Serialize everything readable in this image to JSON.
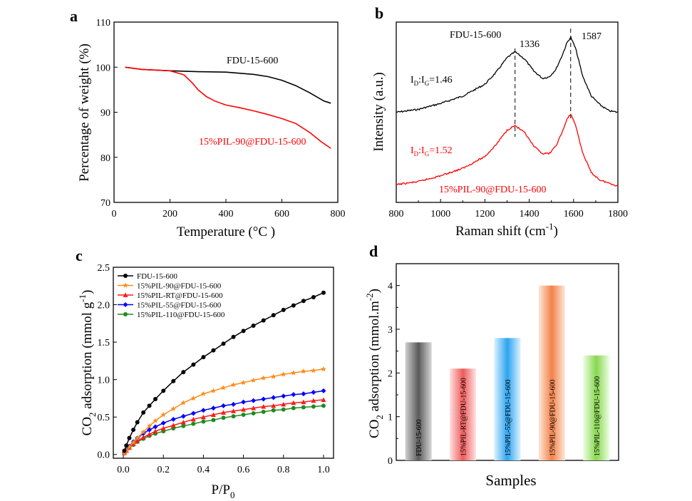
{
  "panels": {
    "a": {
      "letter": "a",
      "xlabel": "Temperature (°C )",
      "ylabel": "Percentage of weight (%)",
      "xticks": [
        0,
        200,
        400,
        600,
        800
      ],
      "yticks": [
        70,
        80,
        90,
        100,
        110
      ],
      "labels": [
        "FDU-15-600",
        "15%PIL-90@FDU-15-600"
      ]
    },
    "b": {
      "letter": "b",
      "xlabel_main": "Raman shift (cm",
      "xlabel_sup": "-1",
      "xlabel_end": ")",
      "ylabel": "Intensity (a.u.)",
      "xticks": [
        800,
        1000,
        1200,
        1400,
        1600,
        1800
      ],
      "sample_top": "FDU-15-600",
      "sample_bottom": "15%PIL-90@FDU-15-600",
      "peak1": "1336",
      "peak2": "1587",
      "ratio_top": "=1.46",
      "ratio_bottom": "=1.52",
      "ratio_I": "I",
      "ratio_D": "D",
      "ratio_colon": ":I",
      "ratio_G": "G"
    },
    "c": {
      "letter": "c",
      "xlabel_main": "P/P",
      "xlabel_sub": "0",
      "ylabel_co": "CO",
      "ylabel_2": "2",
      "ylabel_mid": " adsorption (mmol g",
      "ylabel_sup": "-1",
      "ylabel_end": ")",
      "xticks": [
        "0.0",
        "0.2",
        "0.4",
        "0.6",
        "0.8",
        "1.0"
      ],
      "yticks": [
        "0.0",
        "0.5",
        "1.0",
        "1.5",
        "2.0",
        "2.5"
      ]
    },
    "d": {
      "letter": "d",
      "xlabel": "Samples",
      "ylabel_co": "CO",
      "ylabel_2": "2",
      "ylabel_mid": " adsorption (mmol.m",
      "ylabel_sup": "-2",
      "ylabel_end": ")",
      "yticks": [
        "0",
        "1",
        "2",
        "3",
        "4"
      ]
    }
  },
  "colors": {
    "black": "#000000",
    "red": "#ff0000",
    "orange": "#ff8c1a",
    "bright_red": "#ff1a1a",
    "blue": "#0000ff",
    "green": "#1e8c1e"
  },
  "chart_data": [
    {
      "panel": "a",
      "type": "line",
      "xlabel": "Temperature (°C )",
      "ylabel": "Percentage of weight (%)",
      "xlim": [
        0,
        800
      ],
      "ylim": [
        70,
        110
      ],
      "series": [
        {
          "name": "FDU-15-600",
          "color": "#000000",
          "x": [
            40,
            100,
            200,
            300,
            400,
            500,
            550,
            600,
            650,
            700,
            750,
            775
          ],
          "y": [
            100,
            99.5,
            99.2,
            99.0,
            98.9,
            98.4,
            97.9,
            97.1,
            95.9,
            94.3,
            92.5,
            92.0
          ]
        },
        {
          "name": "15%PIL-90@FDU-15-600",
          "color": "#ff0000",
          "x": [
            40,
            100,
            200,
            250,
            280,
            300,
            330,
            360,
            400,
            450,
            500,
            550,
            600,
            650,
            700,
            740,
            775
          ],
          "y": [
            100,
            99.5,
            99.2,
            98.3,
            96.5,
            95.0,
            93.5,
            92.5,
            91.6,
            91.0,
            90.3,
            89.5,
            88.6,
            87.5,
            85.5,
            83.5,
            82.0
          ]
        }
      ]
    },
    {
      "panel": "b",
      "type": "line",
      "xlabel": "Raman shift (cm-1)",
      "ylabel": "Intensity (a.u.)",
      "xlim": [
        800,
        1800
      ],
      "series": [
        {
          "name": "FDU-15-600",
          "color": "#000000",
          "x": [
            800,
            900,
            1000,
            1100,
            1200,
            1250,
            1300,
            1336,
            1380,
            1420,
            1460,
            1490,
            1520,
            1550,
            1570,
            1587,
            1610,
            1640,
            1680,
            1720,
            1760,
            1800
          ],
          "y": [
            0.49,
            0.51,
            0.55,
            0.6,
            0.68,
            0.76,
            0.86,
            0.9,
            0.85,
            0.77,
            0.72,
            0.73,
            0.78,
            0.88,
            0.96,
            1.0,
            0.92,
            0.74,
            0.6,
            0.54,
            0.5,
            0.49
          ]
        },
        {
          "name": "15%PIL-90@FDU-15-600",
          "color": "#ff0000",
          "x": [
            800,
            900,
            1000,
            1100,
            1200,
            1250,
            1300,
            1336,
            1380,
            1420,
            1460,
            1490,
            1520,
            1550,
            1570,
            1587,
            1610,
            1640,
            1680,
            1720,
            1760,
            1800
          ],
          "y": [
            0.0,
            0.02,
            0.06,
            0.11,
            0.19,
            0.27,
            0.37,
            0.4,
            0.35,
            0.26,
            0.21,
            0.21,
            0.26,
            0.36,
            0.44,
            0.48,
            0.4,
            0.22,
            0.08,
            0.03,
            0.01,
            -0.01
          ]
        }
      ]
    },
    {
      "panel": "c",
      "type": "line",
      "xlabel": "P/P0",
      "ylabel": "CO2 adsorption (mmol g-1)",
      "xlim": [
        -0.05,
        1.05
      ],
      "ylim": [
        -0.05,
        2.5
      ],
      "series": [
        {
          "name": "FDU-15-600",
          "color": "#000000",
          "marker": "circle",
          "x": [
            0.005,
            0.015,
            0.03,
            0.05,
            0.07,
            0.1,
            0.13,
            0.16,
            0.2,
            0.25,
            0.3,
            0.35,
            0.4,
            0.45,
            0.5,
            0.55,
            0.6,
            0.65,
            0.7,
            0.75,
            0.8,
            0.85,
            0.9,
            0.95,
            1.0
          ],
          "y": [
            0.05,
            0.12,
            0.22,
            0.33,
            0.43,
            0.56,
            0.65,
            0.74,
            0.85,
            0.98,
            1.1,
            1.2,
            1.3,
            1.39,
            1.48,
            1.57,
            1.65,
            1.72,
            1.79,
            1.86,
            1.93,
            1.99,
            2.05,
            2.1,
            2.16
          ]
        },
        {
          "name": "15%PIL-90@FDU-15-600",
          "color": "#ff8c1a",
          "marker": "star",
          "x": [
            0.005,
            0.015,
            0.03,
            0.05,
            0.07,
            0.1,
            0.13,
            0.16,
            0.2,
            0.25,
            0.3,
            0.35,
            0.4,
            0.45,
            0.5,
            0.55,
            0.6,
            0.65,
            0.7,
            0.75,
            0.8,
            0.85,
            0.9,
            0.95,
            1.0
          ],
          "y": [
            0.02,
            0.05,
            0.1,
            0.16,
            0.22,
            0.3,
            0.38,
            0.45,
            0.53,
            0.61,
            0.69,
            0.75,
            0.81,
            0.85,
            0.89,
            0.93,
            0.96,
            0.99,
            1.02,
            1.04,
            1.07,
            1.09,
            1.11,
            1.12,
            1.14
          ]
        },
        {
          "name": "15%PIL-RT@FDU-15-600",
          "color": "#ff1a1a",
          "marker": "triangle",
          "x": [
            0.005,
            0.015,
            0.03,
            0.05,
            0.07,
            0.1,
            0.13,
            0.16,
            0.2,
            0.25,
            0.3,
            0.35,
            0.4,
            0.45,
            0.5,
            0.55,
            0.6,
            0.65,
            0.7,
            0.75,
            0.8,
            0.85,
            0.9,
            0.95,
            1.0
          ],
          "y": [
            0.02,
            0.05,
            0.09,
            0.14,
            0.18,
            0.23,
            0.27,
            0.31,
            0.35,
            0.39,
            0.43,
            0.47,
            0.5,
            0.53,
            0.56,
            0.58,
            0.6,
            0.62,
            0.64,
            0.65,
            0.67,
            0.69,
            0.7,
            0.72,
            0.73
          ]
        },
        {
          "name": "15%PIL-55@FDU-15-600",
          "color": "#0000ff",
          "marker": "diamond",
          "x": [
            0.005,
            0.015,
            0.03,
            0.05,
            0.07,
            0.1,
            0.13,
            0.16,
            0.2,
            0.25,
            0.3,
            0.35,
            0.4,
            0.45,
            0.5,
            0.55,
            0.6,
            0.65,
            0.7,
            0.75,
            0.8,
            0.85,
            0.9,
            0.95,
            1.0
          ],
          "y": [
            0.02,
            0.06,
            0.11,
            0.17,
            0.22,
            0.28,
            0.33,
            0.37,
            0.42,
            0.47,
            0.51,
            0.55,
            0.59,
            0.62,
            0.65,
            0.67,
            0.7,
            0.72,
            0.74,
            0.76,
            0.78,
            0.8,
            0.81,
            0.83,
            0.85
          ]
        },
        {
          "name": "15%PIL-110@FDU-15-600",
          "color": "#1e8c1e",
          "marker": "circle",
          "x": [
            0.005,
            0.015,
            0.03,
            0.05,
            0.07,
            0.1,
            0.13,
            0.16,
            0.2,
            0.25,
            0.3,
            0.35,
            0.4,
            0.45,
            0.5,
            0.55,
            0.6,
            0.65,
            0.7,
            0.75,
            0.8,
            0.85,
            0.9,
            0.95,
            1.0
          ],
          "y": [
            0.02,
            0.05,
            0.09,
            0.13,
            0.17,
            0.21,
            0.25,
            0.28,
            0.31,
            0.35,
            0.38,
            0.41,
            0.44,
            0.46,
            0.49,
            0.51,
            0.53,
            0.55,
            0.57,
            0.59,
            0.6,
            0.62,
            0.63,
            0.64,
            0.65
          ]
        }
      ]
    },
    {
      "panel": "d",
      "type": "bar",
      "xlabel": "Samples",
      "ylabel": "CO2 adsorption (mmol.m-2)",
      "ylim": [
        0,
        4.5
      ],
      "categories": [
        "FDU-15-600",
        "15%PIL-RT@FDU-15-600",
        "15%PIL-55@FDU-15-600",
        "15%PIL-90@FDU-15-600",
        "15%PIL-110@FDU-15-600"
      ],
      "values": [
        2.7,
        2.1,
        2.8,
        4.0,
        2.4
      ],
      "colors": [
        "#808080",
        "#e85a5a",
        "#3aa8ee",
        "#f08a50",
        "#8fd65a"
      ]
    }
  ]
}
